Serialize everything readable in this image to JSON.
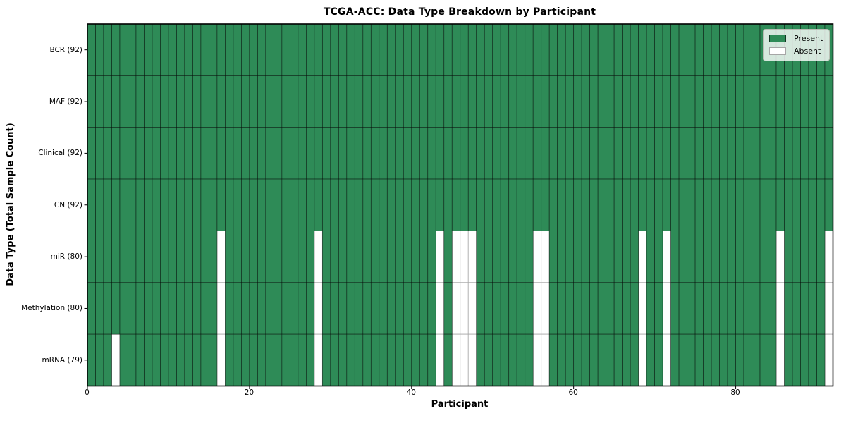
{
  "title": "TCGA-ACC: Data Type Breakdown by Participant",
  "chart_data": {
    "type": "heatmap",
    "title": "TCGA-ACC: Data Type Breakdown by Participant",
    "xlabel": "Participant",
    "ylabel": "Data Type (Total Sample Count)",
    "n_participants": 92,
    "xlim": [
      0,
      92
    ],
    "x_ticks": [
      0,
      20,
      40,
      60,
      80
    ],
    "grid": true,
    "legend_position": "upper right",
    "legend": [
      {
        "label": "Present",
        "color": "#2e8b57"
      },
      {
        "label": "Absent",
        "color": "#ffffff"
      }
    ],
    "colors": {
      "present": "#2e8b57",
      "absent": "#ffffff",
      "present_cell_edge": "rgba(0,0,0,0.62)",
      "absent_cell_edge": "#a8a8a8",
      "spine": "#000000",
      "legend_background": "rgba(255,255,255,0.8)"
    },
    "rows": [
      {
        "name": "BCR",
        "label": "BCR (92)",
        "present_count": 92,
        "absent_count": 0,
        "absent_participants": []
      },
      {
        "name": "MAF",
        "label": "MAF (92)",
        "present_count": 92,
        "absent_count": 0,
        "absent_participants": []
      },
      {
        "name": "Clinical",
        "label": "Clinical (92)",
        "present_count": 92,
        "absent_count": 0,
        "absent_participants": []
      },
      {
        "name": "CN",
        "label": "CN (92)",
        "present_count": 92,
        "absent_count": 0,
        "absent_participants": []
      },
      {
        "name": "miR",
        "label": "miR (80)",
        "present_count": 80,
        "absent_count": 12,
        "absent_participants": [
          16,
          28,
          43,
          45,
          46,
          47,
          55,
          56,
          68,
          71,
          85,
          91
        ]
      },
      {
        "name": "Methylation",
        "label": "Methylation (80)",
        "present_count": 80,
        "absent_count": 12,
        "absent_participants": [
          16,
          28,
          43,
          45,
          46,
          47,
          55,
          56,
          68,
          71,
          85,
          91
        ]
      },
      {
        "name": "mRNA",
        "label": "mRNA (79)",
        "present_count": 79,
        "absent_count": 13,
        "absent_participants": [
          3,
          16,
          28,
          43,
          45,
          46,
          47,
          55,
          56,
          68,
          71,
          85,
          91
        ]
      }
    ]
  }
}
